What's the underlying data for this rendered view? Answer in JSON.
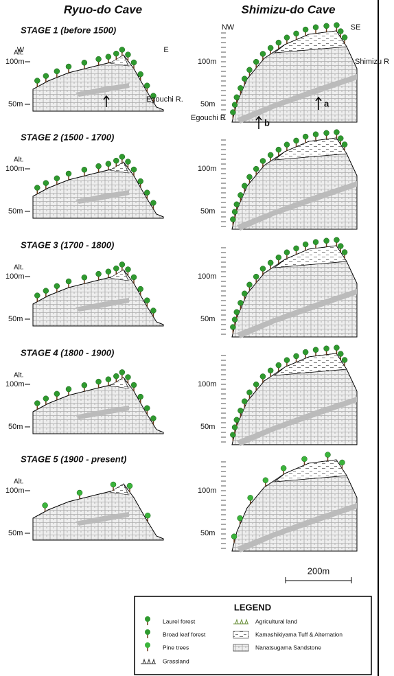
{
  "columns": [
    "Ryuo-do Cave",
    "Shimizu-do Cave"
  ],
  "stages": [
    "STAGE 1 (before 1500)",
    "STAGE 2 (1500 - 1700)",
    "STAGE 3 (1700 - 1800)",
    "STAGE 4 (1800 - 1900)",
    "STAGE 5 (1900 - present)"
  ],
  "axis": {
    "alt": "Alt.",
    "high": "100m",
    "low": "50m"
  },
  "ryuo_labels": {
    "west": "W",
    "east": "E",
    "river": "Egouchi R."
  },
  "shimizu_labels": {
    "northwest": "NW",
    "southeast": "SE",
    "river_se": "Shimizu R",
    "river_nw": "Egouchi R",
    "point_a": "a",
    "point_b": "b"
  },
  "scale": "200m",
  "legend": {
    "title": "LEGEND",
    "items": [
      "Laurel forest",
      "Broad leaf forest",
      "Pine trees",
      "Grassland",
      "Agricultural land",
      "Kamashikiyama Tuff & Alternation",
      "Nanatsugama Sandstone"
    ]
  }
}
